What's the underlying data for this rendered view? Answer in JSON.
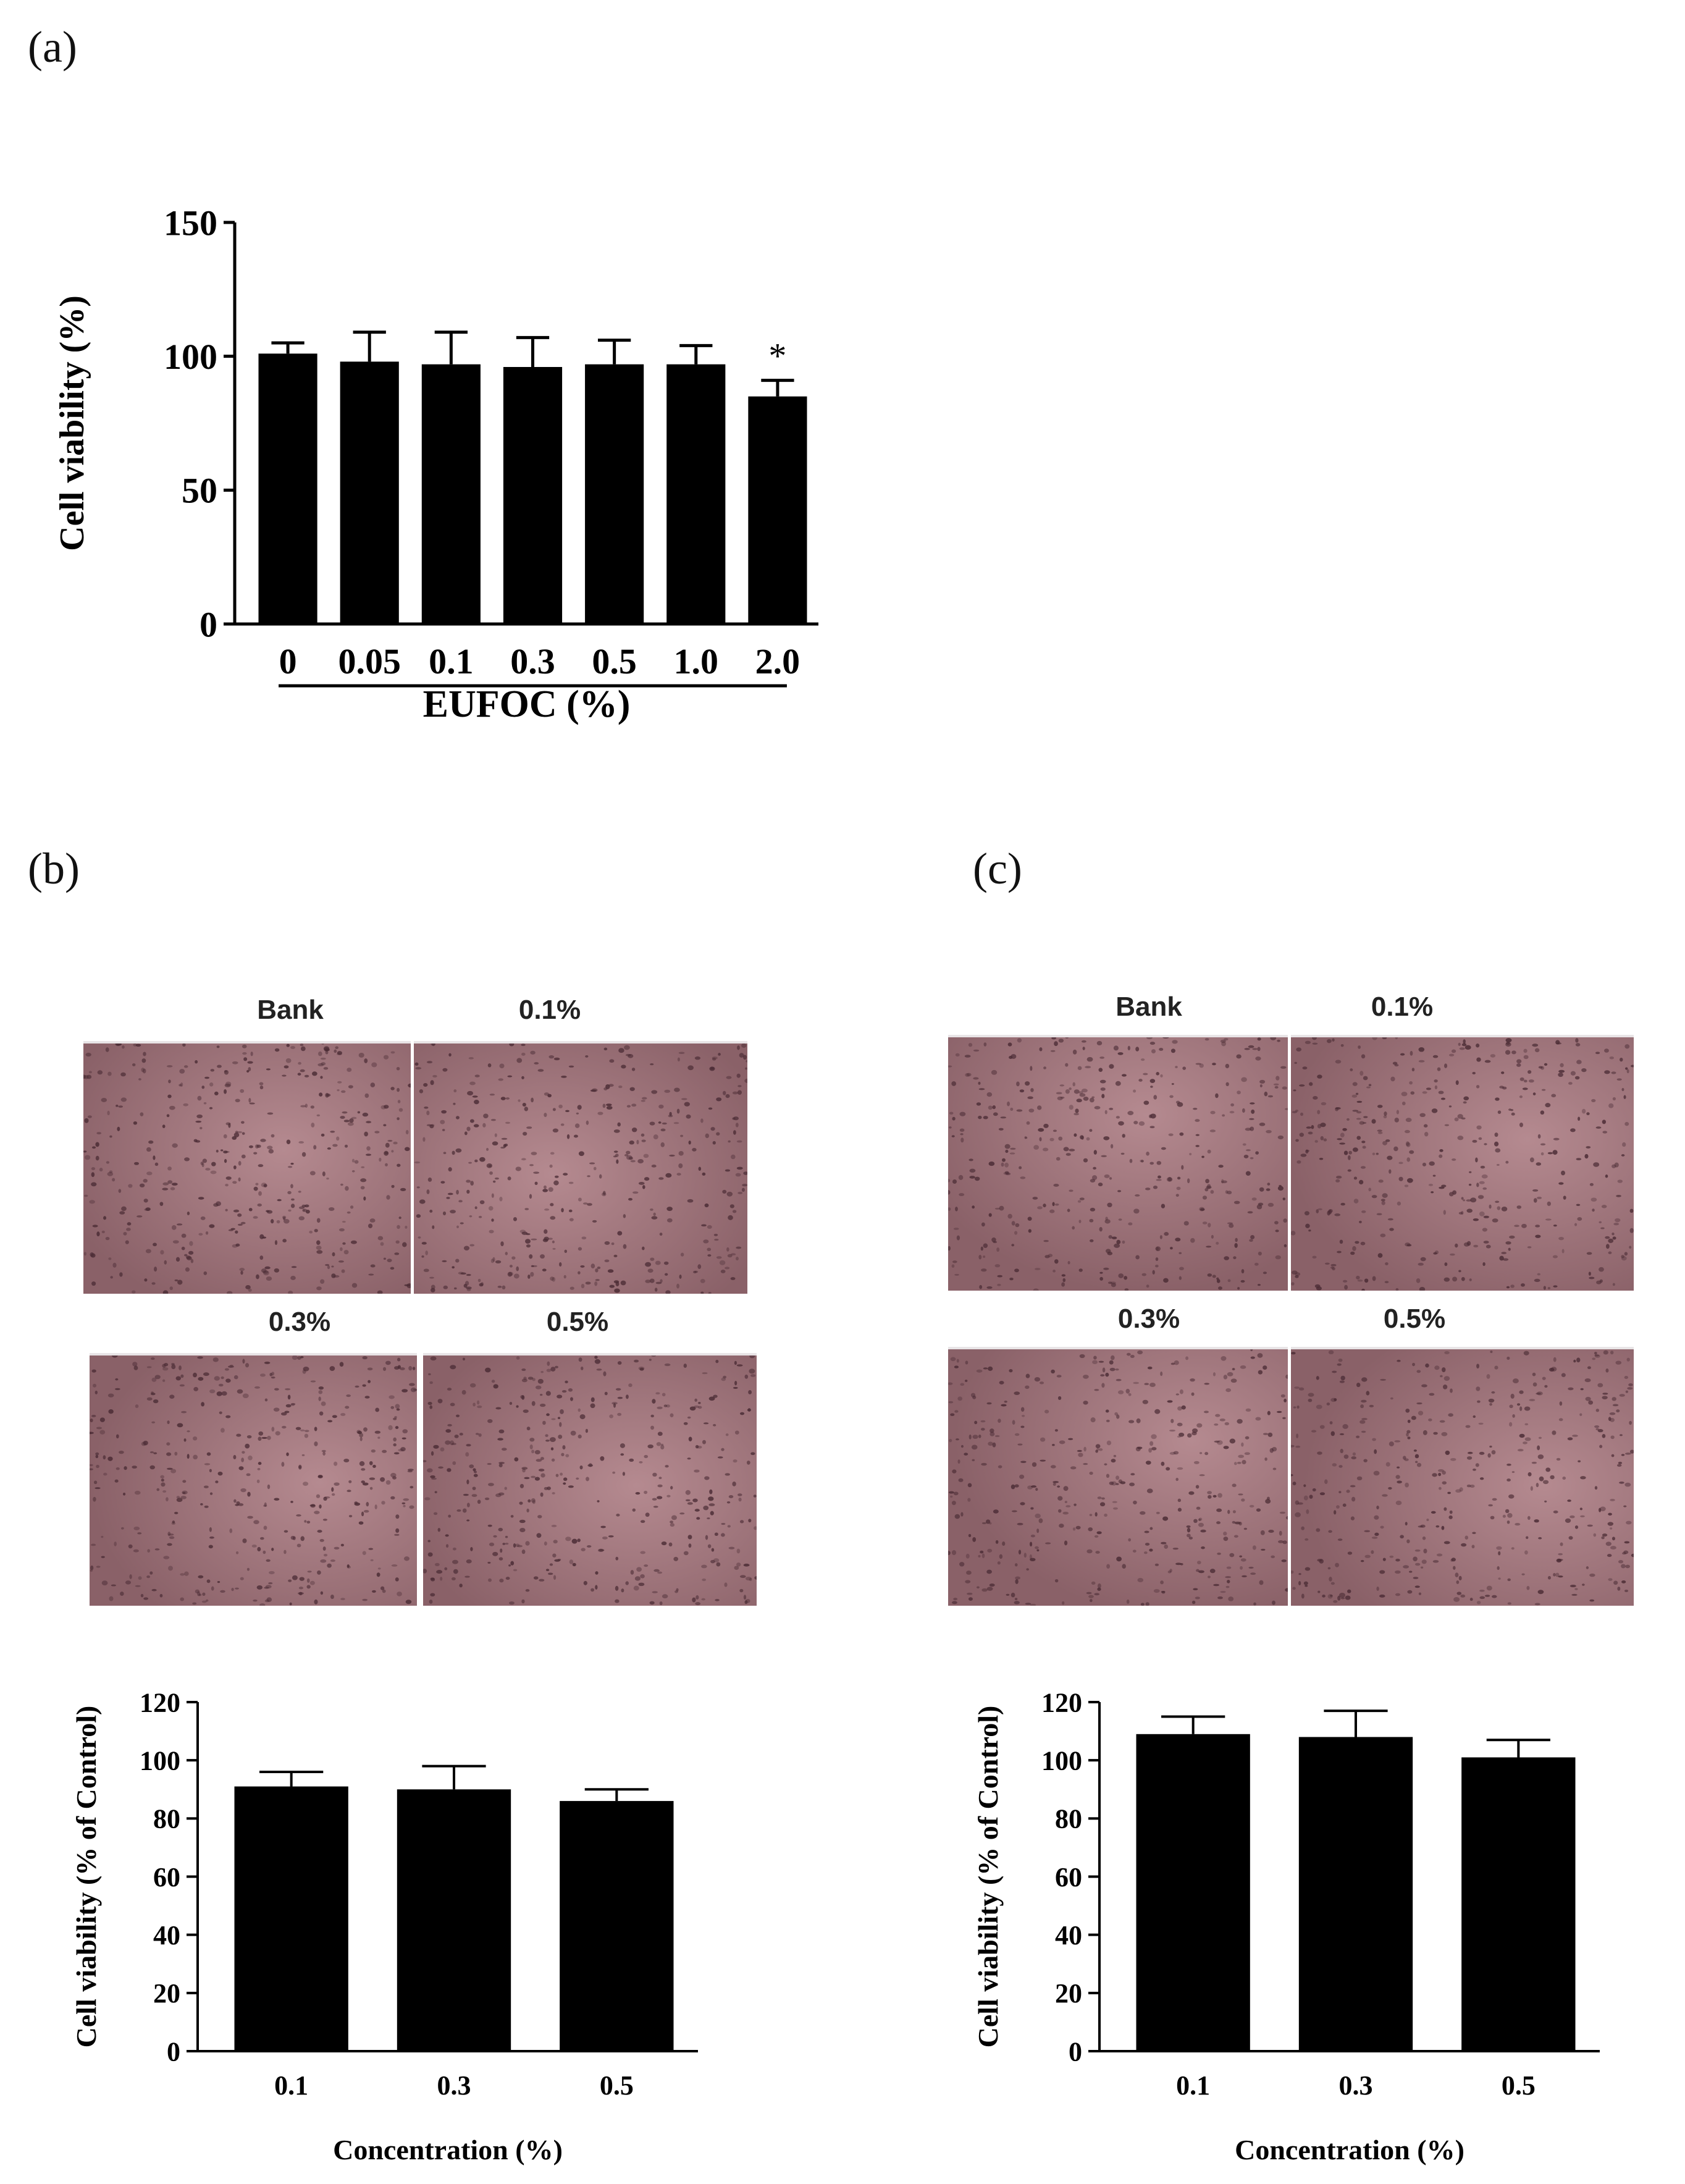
{
  "panels": {
    "a": {
      "label": "(a)"
    },
    "b": {
      "label": "(b)",
      "images": [
        "Bank",
        "0.1%",
        "0.3%",
        "0.5%"
      ]
    },
    "c": {
      "label": "(c)",
      "images": [
        "Bank",
        "0.1%",
        "0.3%",
        "0.5%"
      ]
    }
  },
  "colors": {
    "bar": "#000000",
    "micro_base": "#8a6168",
    "micro_light": "#b58a90",
    "micro_dot": "#4b2c35"
  },
  "chart_data": [
    {
      "id": "a",
      "type": "bar",
      "categories": [
        "0",
        "0.05",
        "0.1",
        "0.3",
        "0.5",
        "1.0",
        "2.0"
      ],
      "values": [
        101,
        98,
        97,
        96,
        97,
        97,
        85
      ],
      "errors": [
        4,
        11,
        12,
        11,
        9,
        7,
        6
      ],
      "annotations": [
        "",
        "",
        "",
        "",
        "",
        "",
        "*"
      ],
      "title": "",
      "xlabel": "EUFOC (%)",
      "ylabel": "Cell viability (%)",
      "ylim": [
        0,
        150
      ],
      "yticks": [
        "0",
        "50",
        "100",
        "150"
      ]
    },
    {
      "id": "b",
      "type": "bar",
      "categories": [
        "0.1",
        "0.3",
        "0.5"
      ],
      "values": [
        91,
        90,
        86
      ],
      "errors": [
        5,
        8,
        4
      ],
      "annotations": [
        "",
        "",
        ""
      ],
      "title": "",
      "xlabel": "Concentration (%)",
      "ylabel": "Cell viability (% of Control)",
      "ylim": [
        0,
        120
      ],
      "yticks": [
        "0",
        "20",
        "40",
        "60",
        "80",
        "100",
        "120"
      ]
    },
    {
      "id": "c",
      "type": "bar",
      "categories": [
        "0.1",
        "0.3",
        "0.5"
      ],
      "values": [
        109,
        108,
        101
      ],
      "errors": [
        6,
        9,
        6
      ],
      "annotations": [
        "",
        "",
        ""
      ],
      "title": "",
      "xlabel": "Concentration (%)",
      "ylabel": "Cell viability (% of Control)",
      "ylim": [
        0,
        120
      ],
      "yticks": [
        "0",
        "20",
        "40",
        "60",
        "80",
        "100",
        "120"
      ]
    }
  ]
}
